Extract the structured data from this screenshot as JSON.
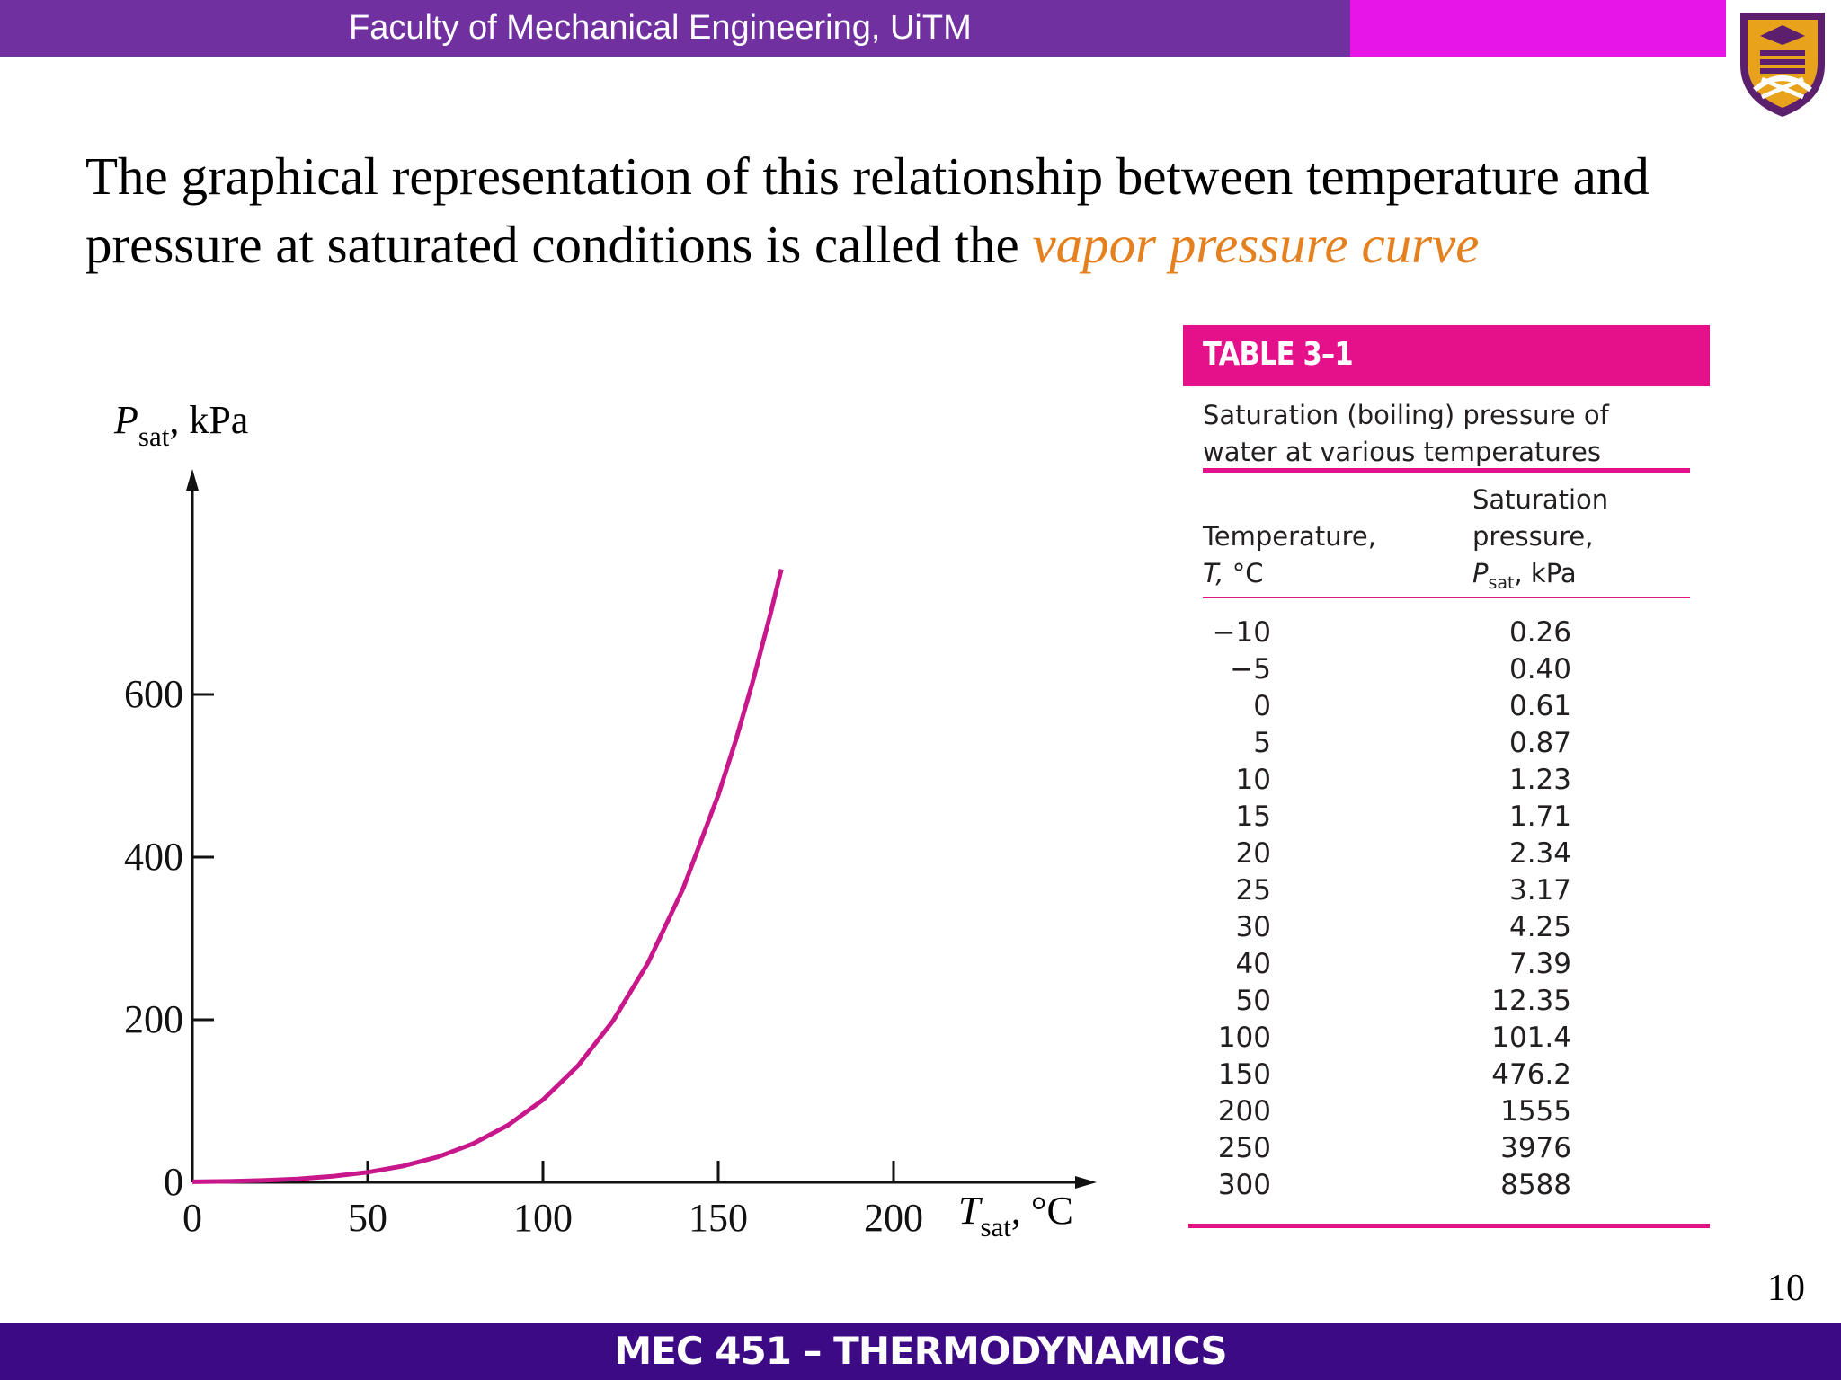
{
  "header": {
    "title": "Faculty of Mechanical Engineering, UiTM"
  },
  "logo": {
    "icon": "uitm-crest-icon",
    "colors": {
      "outer": "#5b1f6e",
      "inner": "#e8a21c",
      "accent": "#ffffff"
    }
  },
  "heading": {
    "text": "The graphical representation of this relationship between temperature and pressure at saturated conditions is called the",
    "highlight": "vapor pressure curve",
    "highlight_color": "#e5801e"
  },
  "chart_data": {
    "type": "line",
    "xlabel": "T",
    "xlabel_sub": "sat",
    "xlabel_unit": ", °C",
    "ylabel": "P",
    "ylabel_sub": "sat",
    "ylabel_unit": ", kPa",
    "xlim": [
      0,
      250
    ],
    "ylim": [
      0,
      750
    ],
    "xticks": [
      "0",
      "50",
      "100",
      "150",
      "200"
    ],
    "yticks": [
      "0",
      "200",
      "400",
      "600"
    ],
    "line_color": "#c8178a",
    "grid": false,
    "x": [
      0,
      10,
      20,
      30,
      40,
      50,
      60,
      70,
      80,
      90,
      100,
      110,
      120,
      130,
      140,
      150,
      155,
      160,
      165,
      168
    ],
    "y": [
      0.61,
      1.23,
      2.34,
      4.25,
      7.39,
      12.35,
      19.95,
      31.2,
      47.4,
      70.2,
      101.4,
      143.4,
      198.7,
      270.3,
      361.5,
      476.2,
      543.5,
      618.2,
      700.9,
      754.0
    ]
  },
  "table": {
    "title": "TABLE 3–1",
    "caption_line1": "Saturation (boiling) pressure of",
    "caption_line2": "water at various temperatures",
    "col1_line1": "Temperature,",
    "col1_sym": "T,",
    "col1_unit": " °C",
    "col2_line1": "Saturation",
    "col2_line2": "pressure,",
    "col2_sym": "P",
    "col2_sub": "sat",
    "col2_unit": ", kPa",
    "rows": [
      {
        "t": "−10",
        "p": "0.26"
      },
      {
        "t": "−5",
        "p": "0.40"
      },
      {
        "t": "0",
        "p": "0.61"
      },
      {
        "t": "5",
        "p": "0.87"
      },
      {
        "t": "10",
        "p": "1.23"
      },
      {
        "t": "15",
        "p": "1.71"
      },
      {
        "t": "20",
        "p": "2.34"
      },
      {
        "t": "25",
        "p": "3.17"
      },
      {
        "t": "30",
        "p": "4.25"
      },
      {
        "t": "40",
        "p": "7.39"
      },
      {
        "t": "50",
        "p": "12.35"
      },
      {
        "t": "100",
        "p": "101.4"
      },
      {
        "t": "150",
        "p": "476.2"
      },
      {
        "t": "200",
        "p": "1555"
      },
      {
        "t": "250",
        "p": "3976"
      },
      {
        "t": "300",
        "p": "8588"
      }
    ],
    "accent_color": "#e5118a"
  },
  "page_number": "10",
  "footer": {
    "title": "MEC 451 – THERMODYNAMICS"
  }
}
